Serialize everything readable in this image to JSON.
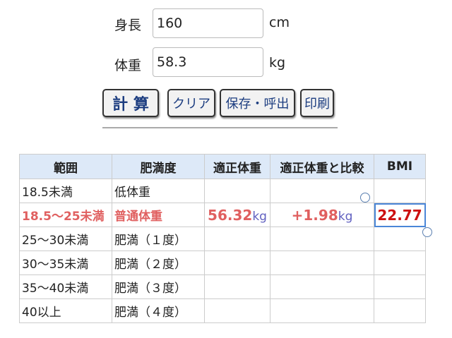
{
  "form": {
    "height_label": "身長",
    "height_value": "160",
    "height_unit": "cm",
    "weight_label": "体重",
    "weight_value": "58.3",
    "weight_unit": "kg"
  },
  "buttons": {
    "calc": "計 算",
    "clear": "クリア",
    "save": "保存・呼出",
    "print": "印刷"
  },
  "table": {
    "headers": [
      "範囲",
      "肥満度",
      "適正体重",
      "適正体重と比較",
      "BMI"
    ],
    "rows": [
      {
        "range": "18.5未満",
        "level": "低体重"
      },
      {
        "range": "18.5〜25未満",
        "level": "普通体重",
        "ideal": "56.32",
        "ideal_unit": "kg",
        "diff": "+1.98",
        "diff_unit": "kg",
        "bmi": "22.77"
      },
      {
        "range": "25〜30未満",
        "level": "肥満（１度）"
      },
      {
        "range": "30〜35未満",
        "level": "肥満（２度）"
      },
      {
        "range": "35〜40未満",
        "level": "肥満（３度）"
      },
      {
        "range": "40以上",
        "level": "肥満（４度）"
      }
    ]
  },
  "colors": {
    "highlight": "#e06060",
    "value": "#1a1aa8",
    "bmi": "#cc1111",
    "header_bg": "#dde9f8"
  }
}
